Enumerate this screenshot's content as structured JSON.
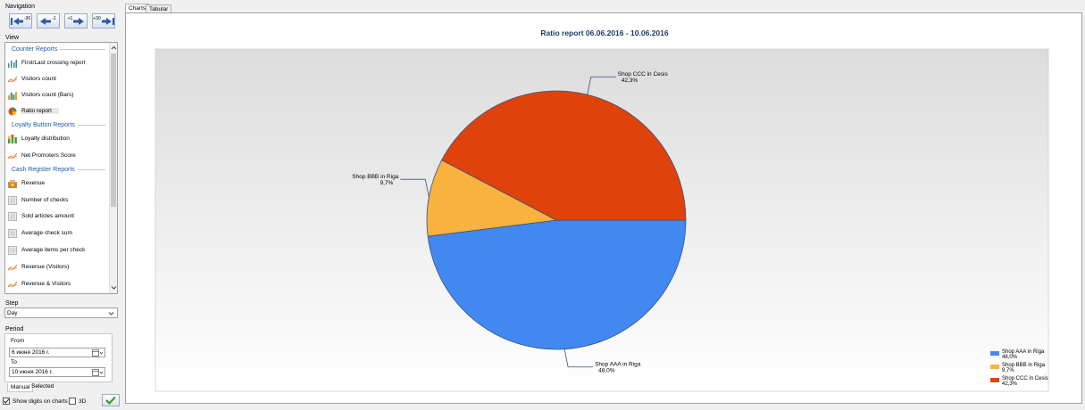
{
  "nav": {
    "title": "Navigation",
    "buttons": [
      {
        "label": "-30",
        "icon": "first-page-icon"
      },
      {
        "label": "-1",
        "icon": "arrow-left-icon"
      },
      {
        "label": "+1",
        "icon": "arrow-right-icon"
      },
      {
        "label": "+30",
        "icon": "last-page-icon"
      }
    ]
  },
  "view": {
    "title": "View",
    "sections": [
      {
        "label": "Counter Reports",
        "items": [
          {
            "label": "First/Last crossing report",
            "icon": "crossing-chart-icon"
          },
          {
            "label": "Visitors count",
            "icon": "line-chart-icon"
          },
          {
            "label": "Visitors count (Bars)",
            "icon": "bar-chart-icon"
          },
          {
            "label": "Ratio report",
            "icon": "pie-chart-icon",
            "selected": true
          }
        ]
      },
      {
        "label": "Loyalty Button Reports",
        "items": [
          {
            "label": "Loyalty distribution",
            "icon": "stacked-bar-icon"
          },
          {
            "label": "Net Promoters Score",
            "icon": "line-chart-icon"
          }
        ]
      },
      {
        "label": "Cash Register Reports",
        "items": [
          {
            "label": "Revenue",
            "icon": "money-icon"
          },
          {
            "label": "Number of checks",
            "icon": "document-icon"
          },
          {
            "label": "Sold articles amount",
            "icon": "document-icon"
          },
          {
            "label": "Average check sum",
            "icon": "document-icon"
          },
          {
            "label": "Average items per check",
            "icon": "document-icon"
          },
          {
            "label": "Revenue (Visitors)",
            "icon": "line-chart-icon"
          },
          {
            "label": "Revenue & Visitors",
            "icon": "line-chart-icon"
          }
        ]
      }
    ]
  },
  "step": {
    "title": "Step",
    "value": "Day"
  },
  "period": {
    "title": "Period",
    "from_label": "From",
    "from_value": "6   июня   2016 г.",
    "to_label": "To",
    "to_value": "10  июня   2016 г.",
    "tabs": [
      "Manual",
      "Selected"
    ]
  },
  "options": {
    "show_digits": "Show digits on charts",
    "show_digits_checked": true,
    "three_d": "3D",
    "three_d_checked": false
  },
  "tabs": [
    "Charts",
    "Tabular"
  ],
  "chart_data": {
    "type": "pie",
    "title": "Ratio report 06.06.2016 - 10.06.2016",
    "slices": [
      {
        "label": "Shop AAA in Riga",
        "value": 48.0,
        "value_text": "48,0%",
        "color": "#4189f0"
      },
      {
        "label": "Shop BBB in Riga",
        "value": 9.7,
        "value_text": "9,7%",
        "color": "#f9b23d"
      },
      {
        "label": "Shop CCC in Cesis",
        "value": 42.3,
        "value_text": "42,3%",
        "color": "#e0420c"
      }
    ],
    "legend_position": "bottom-right"
  }
}
